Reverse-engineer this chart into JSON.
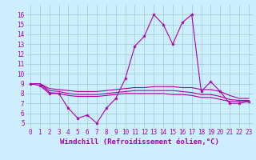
{
  "x": [
    0,
    1,
    2,
    3,
    4,
    5,
    6,
    7,
    8,
    9,
    10,
    11,
    12,
    13,
    14,
    15,
    16,
    17,
    18,
    19,
    20,
    21,
    22,
    23
  ],
  "line1": [
    9.0,
    8.8,
    8.0,
    8.0,
    6.5,
    5.5,
    5.8,
    5.0,
    6.5,
    7.5,
    9.5,
    12.8,
    13.8,
    16.0,
    15.0,
    13.0,
    15.2,
    16.0,
    8.2,
    9.2,
    8.2,
    7.0,
    7.0,
    7.2
  ],
  "flat1": [
    9.0,
    9.0,
    8.5,
    8.4,
    8.3,
    8.2,
    8.2,
    8.2,
    8.3,
    8.4,
    8.5,
    8.6,
    8.6,
    8.7,
    8.7,
    8.7,
    8.6,
    8.6,
    8.4,
    8.4,
    8.2,
    7.8,
    7.5,
    7.5
  ],
  "flat2": [
    9.0,
    9.0,
    8.3,
    8.2,
    8.0,
    7.9,
    7.9,
    7.9,
    8.0,
    8.1,
    8.2,
    8.3,
    8.3,
    8.3,
    8.3,
    8.3,
    8.2,
    8.1,
    7.9,
    7.9,
    7.7,
    7.4,
    7.3,
    7.3
  ],
  "flat3": [
    9.0,
    9.0,
    8.1,
    8.0,
    7.8,
    7.7,
    7.7,
    7.7,
    7.8,
    7.9,
    8.0,
    8.0,
    8.0,
    8.0,
    8.0,
    7.9,
    7.9,
    7.8,
    7.6,
    7.6,
    7.4,
    7.2,
    7.2,
    7.2
  ],
  "bg_color": "#cceeff",
  "line_color": "#aa00aa",
  "grid_color": "#99cccc",
  "xlabel": "Windchill (Refroidissement éolien,°C)",
  "ylim": [
    4.5,
    17.0
  ],
  "xlim": [
    -0.5,
    23.5
  ],
  "yticks": [
    5,
    6,
    7,
    8,
    9,
    10,
    11,
    12,
    13,
    14,
    15,
    16
  ],
  "xticks": [
    0,
    1,
    2,
    3,
    4,
    5,
    6,
    7,
    8,
    9,
    10,
    11,
    12,
    13,
    14,
    15,
    16,
    17,
    18,
    19,
    20,
    21,
    22,
    23
  ],
  "tick_fontsize": 5.5,
  "xlabel_fontsize": 6.5
}
